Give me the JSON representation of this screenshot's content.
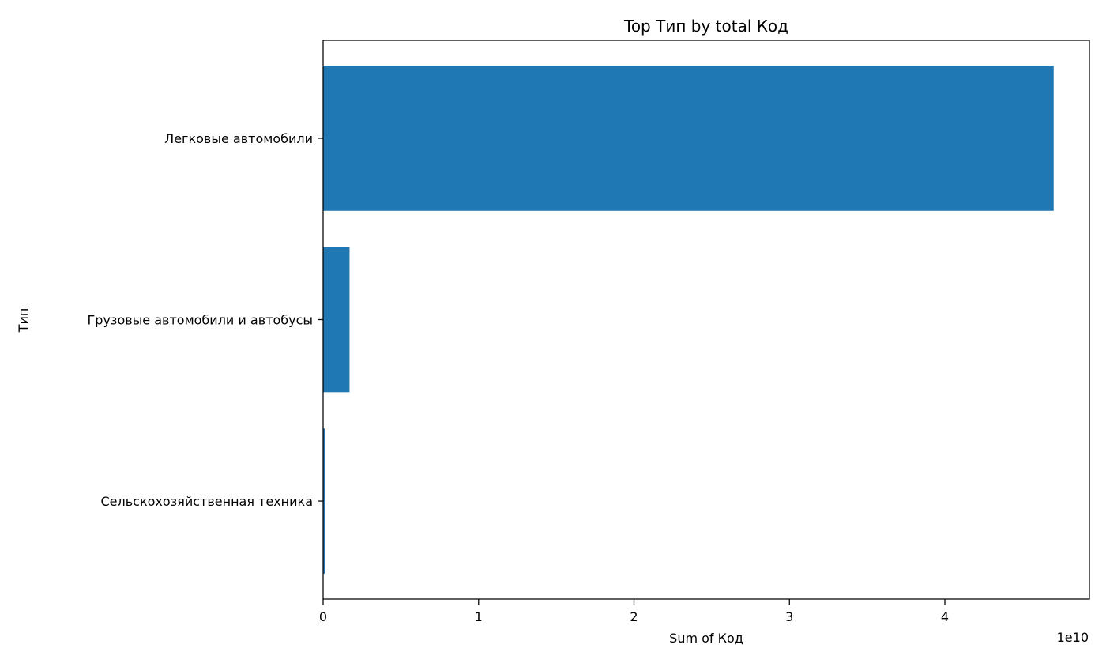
{
  "chart_data": {
    "type": "bar",
    "orientation": "horizontal",
    "title": "Top Тип by total Код",
    "xlabel": "Sum of Код",
    "ylabel": "Тип",
    "categories": [
      "Легковые автомобили",
      "Грузовые автомобили и автобусы",
      "Сельскохозяйственная техника"
    ],
    "values": [
      47000000000,
      1700000000,
      100000000
    ],
    "xlim": [
      0,
      49300000000
    ],
    "x_ticks": [
      0,
      10000000000,
      20000000000,
      30000000000,
      40000000000
    ],
    "x_tick_labels": [
      "0",
      "1",
      "2",
      "3",
      "4"
    ],
    "x_offset_label": "1e10",
    "grid": false,
    "bar_color": "#1f77b4",
    "legend": "none"
  }
}
